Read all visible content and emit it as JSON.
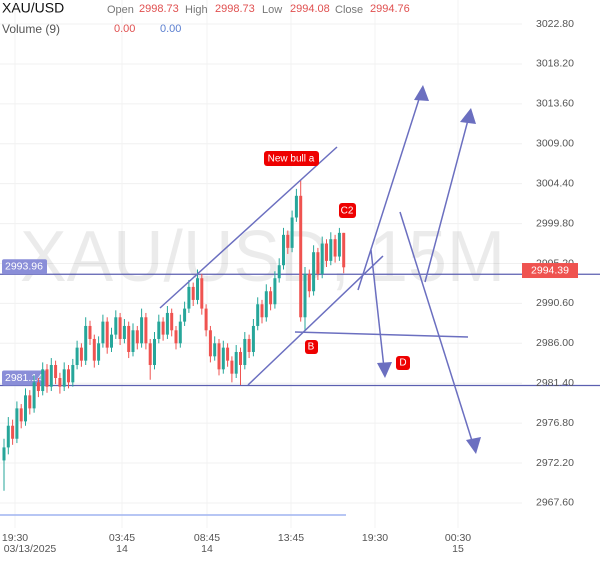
{
  "header": {
    "symbol": "XAU/USD",
    "volume": "Volume (9)",
    "open_label": "Open",
    "open": "2998.73",
    "high_label": "High",
    "high": "2998.73",
    "low_label": "Low",
    "low": "2994.08",
    "close_label": "Close",
    "close": "2994.76",
    "volume_values": [
      "0.00",
      "0.00"
    ]
  },
  "chart_data": {
    "type": "candlestick",
    "watermark": "XAU/USD, 15M",
    "up_color": "#26a69a",
    "down_color": "#ef5350",
    "grid": true,
    "ylim": [
      2966.21,
      3025.57
    ],
    "yticks": [
      {
        "value": 3022.8,
        "label": "3022.80"
      },
      {
        "value": 3018.2,
        "label": "3018.20"
      },
      {
        "value": 3013.6,
        "label": "3013.60"
      },
      {
        "value": 3009.0,
        "label": "3009.00"
      },
      {
        "value": 3004.4,
        "label": "3004.40"
      },
      {
        "value": 2999.8,
        "label": "2999.80"
      },
      {
        "value": 2995.2,
        "label": "2995.20"
      },
      {
        "value": 2990.6,
        "label": "2990.60"
      },
      {
        "value": 2986.0,
        "label": "2986.00"
      },
      {
        "value": 2981.4,
        "label": "2981.40"
      },
      {
        "value": 2976.8,
        "label": "2976.80"
      },
      {
        "value": 2972.2,
        "label": "2972.20"
      },
      {
        "value": 2967.6,
        "label": "2967.60"
      }
    ],
    "xticks": [
      {
        "label": "19:30",
        "sub": "03/13/2025"
      },
      {
        "label": "03:45",
        "sub": "14"
      },
      {
        "label": "08:45",
        "sub": "14"
      },
      {
        "label": "13:45"
      },
      {
        "label": "19:30"
      },
      {
        "label": "00:30",
        "sub": "15"
      }
    ],
    "levels": [
      2993.96,
      2981.14
    ],
    "last_price": 2994.39,
    "annotations": [
      "New bull a",
      "C2",
      "B",
      "D"
    ],
    "candles": [
      [
        2972.5,
        2975.0,
        2969.0,
        2974.0
      ],
      [
        2974.0,
        2977.5,
        2973.2,
        2976.5
      ],
      [
        2976.5,
        2977.2,
        2974.3,
        2975.0
      ],
      [
        2975.0,
        2979.3,
        2974.5,
        2978.5
      ],
      [
        2978.5,
        2979.0,
        2976.2,
        2977.0
      ],
      [
        2977.0,
        2980.8,
        2976.5,
        2980.0
      ],
      [
        2980.0,
        2980.6,
        2977.8,
        2978.5
      ],
      [
        2978.5,
        2982.3,
        2978.0,
        2981.5
      ],
      [
        2981.5,
        2982.0,
        2979.8,
        2980.5
      ],
      [
        2980.5,
        2983.8,
        2980.0,
        2983.0
      ],
      [
        2983.0,
        2983.6,
        2980.3,
        2981.0
      ],
      [
        2981.0,
        2984.3,
        2980.5,
        2983.5
      ],
      [
        2983.5,
        2984.0,
        2981.3,
        2982.0
      ],
      [
        2982.0,
        2982.6,
        2980.2,
        2981.0
      ],
      [
        2981.0,
        2983.8,
        2980.5,
        2983.0
      ],
      [
        2983.0,
        2983.5,
        2980.8,
        2981.5
      ],
      [
        2981.5,
        2984.2,
        2981.0,
        2983.5
      ],
      [
        2983.5,
        2986.3,
        2983.0,
        2985.5
      ],
      [
        2985.5,
        2986.0,
        2983.3,
        2984.0
      ],
      [
        2984.0,
        2989.0,
        2983.5,
        2988.0
      ],
      [
        2988.0,
        2988.6,
        2985.8,
        2986.5
      ],
      [
        2986.5,
        2987.0,
        2983.2,
        2984.0
      ],
      [
        2984.0,
        2986.8,
        2983.5,
        2986.0
      ],
      [
        2986.0,
        2989.3,
        2985.5,
        2988.5
      ],
      [
        2988.5,
        2989.0,
        2984.8,
        2985.5
      ],
      [
        2985.5,
        2987.8,
        2985.0,
        2987.0
      ],
      [
        2987.0,
        2989.8,
        2986.5,
        2989.0
      ],
      [
        2989.0,
        2989.5,
        2985.8,
        2986.5
      ],
      [
        2986.5,
        2988.8,
        2986.0,
        2988.0
      ],
      [
        2988.0,
        2988.5,
        2984.3,
        2985.0
      ],
      [
        2985.0,
        2988.3,
        2984.5,
        2987.5
      ],
      [
        2987.5,
        2988.0,
        2985.3,
        2986.0
      ],
      [
        2986.0,
        2990.0,
        2985.5,
        2989.0
      ],
      [
        2989.0,
        2989.5,
        2985.3,
        2986.0
      ],
      [
        2986.0,
        2986.5,
        2981.8,
        2983.5
      ],
      [
        2983.5,
        2987.3,
        2983.0,
        2986.5
      ],
      [
        2986.5,
        2989.3,
        2986.0,
        2988.5
      ],
      [
        2988.5,
        2989.0,
        2986.3,
        2987.0
      ],
      [
        2987.0,
        2990.3,
        2986.5,
        2989.5
      ],
      [
        2989.5,
        2990.0,
        2986.8,
        2987.5
      ],
      [
        2987.5,
        2988.0,
        2985.3,
        2986.0
      ],
      [
        2986.0,
        2989.3,
        2985.5,
        2988.5
      ],
      [
        2988.5,
        2990.8,
        2988.0,
        2990.0
      ],
      [
        2990.0,
        2993.3,
        2989.5,
        2992.5
      ],
      [
        2992.5,
        2993.0,
        2990.3,
        2991.0
      ],
      [
        2991.0,
        2994.5,
        2990.5,
        2993.5
      ],
      [
        2993.5,
        2994.0,
        2989.3,
        2990.0
      ],
      [
        2990.0,
        2990.5,
        2986.8,
        2987.5
      ],
      [
        2987.5,
        2988.0,
        2983.8,
        2984.5
      ],
      [
        2984.5,
        2986.8,
        2984.0,
        2986.0
      ],
      [
        2986.0,
        2986.5,
        2982.3,
        2983.0
      ],
      [
        2983.0,
        2986.3,
        2982.5,
        2985.5
      ],
      [
        2985.5,
        2986.0,
        2983.3,
        2984.0
      ],
      [
        2984.0,
        2984.5,
        2981.5,
        2982.5
      ],
      [
        2982.5,
        2985.8,
        2982.0,
        2985.0
      ],
      [
        2985.0,
        2985.5,
        2981.2,
        2983.5
      ],
      [
        2983.5,
        2987.3,
        2983.0,
        2986.5
      ],
      [
        2986.5,
        2987.0,
        2984.3,
        2985.0
      ],
      [
        2985.0,
        2988.8,
        2984.5,
        2988.0
      ],
      [
        2988.0,
        2991.3,
        2987.5,
        2990.5
      ],
      [
        2990.5,
        2991.0,
        2988.3,
        2989.0
      ],
      [
        2989.0,
        2992.8,
        2988.5,
        2992.0
      ],
      [
        2992.0,
        2992.5,
        2989.8,
        2990.5
      ],
      [
        2990.5,
        2994.3,
        2990.0,
        2993.5
      ],
      [
        2993.5,
        2995.8,
        2993.0,
        2995.0
      ],
      [
        2995.0,
        2999.3,
        2994.5,
        2998.5
      ],
      [
        2998.5,
        2999.0,
        2996.3,
        2997.0
      ],
      [
        2997.0,
        3001.3,
        2996.5,
        3000.5
      ],
      [
        3000.5,
        3003.8,
        3000.0,
        3003.0
      ],
      [
        3003.0,
        3004.8,
        2988.5,
        2989.0
      ],
      [
        2989.0,
        2994.8,
        2987.4,
        2994.0
      ],
      [
        2994.0,
        2994.5,
        2991.3,
        2992.0
      ],
      [
        2992.0,
        2997.3,
        2991.5,
        2996.5
      ],
      [
        2996.5,
        2997.0,
        2993.3,
        2994.0
      ],
      [
        2994.0,
        2998.3,
        2993.5,
        2997.5
      ],
      [
        2997.5,
        2998.0,
        2994.8,
        2995.5
      ],
      [
        2995.5,
        2998.8,
        2995.0,
        2998.0
      ],
      [
        2998.0,
        2998.5,
        2995.3,
        2996.0
      ],
      [
        2996.0,
        2999.3,
        2995.5,
        2998.73
      ],
      [
        2998.73,
        2998.73,
        2994.08,
        2994.76
      ]
    ]
  }
}
